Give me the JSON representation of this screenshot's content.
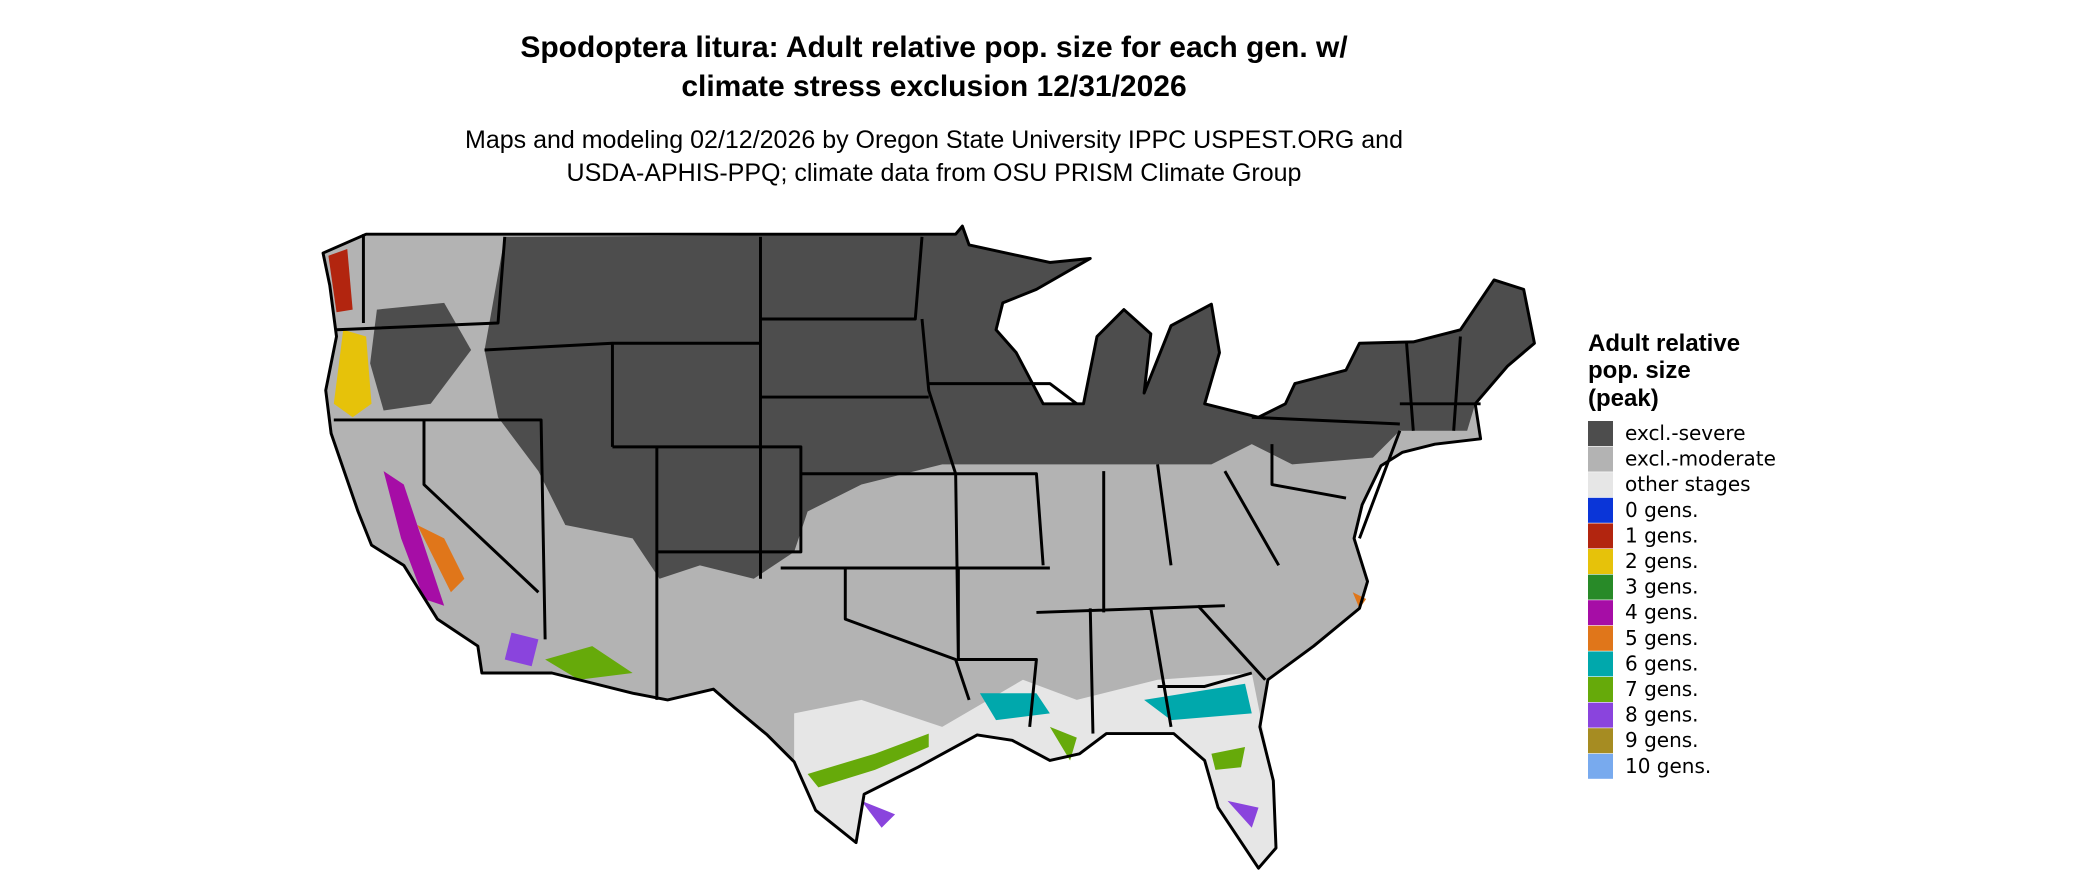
{
  "title": [
    "Spodoptera litura: Adult relative pop. size for each gen. w/",
    "climate stress exclusion 12/31/2026"
  ],
  "subtitle": [
    "Maps and modeling 02/12/2026 by Oregon State University IPPC USPEST.ORG and",
    "USDA-APHIS-PPQ; climate data from OSU PRISM Climate Group"
  ],
  "legend": {
    "title": [
      "Adult relative",
      "pop. size",
      "(peak)"
    ],
    "items": [
      {
        "label": "excl.-severe",
        "color": "#4d4d4d"
      },
      {
        "label": "excl.-moderate",
        "color": "#b3b3b3"
      },
      {
        "label": "other stages",
        "color": "#e6e6e6"
      },
      {
        "label": "0 gens.",
        "color": "#0a35d8"
      },
      {
        "label": "1 gens.",
        "color": "#b2250f"
      },
      {
        "label": "2 gens.",
        "color": "#e6c20a"
      },
      {
        "label": "3 gens.",
        "color": "#288a28"
      },
      {
        "label": "4 gens.",
        "color": "#a60da6"
      },
      {
        "label": "5 gens.",
        "color": "#e0761a"
      },
      {
        "label": "6 gens.",
        "color": "#00a8ac"
      },
      {
        "label": "7 gens.",
        "color": "#66aa0a"
      },
      {
        "label": "8 gens.",
        "color": "#8a44dd"
      },
      {
        "label": "9 gens.",
        "color": "#a68c22"
      },
      {
        "label": "10 gens.",
        "color": "#78aaee"
      }
    ]
  }
}
